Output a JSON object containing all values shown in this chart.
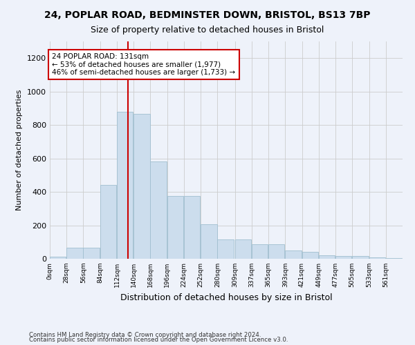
{
  "title": "24, POPLAR ROAD, BEDMINSTER DOWN, BRISTOL, BS13 7BP",
  "subtitle": "Size of property relative to detached houses in Bristol",
  "xlabel": "Distribution of detached houses by size in Bristol",
  "ylabel": "Number of detached properties",
  "bar_color": "#ccdded",
  "bar_edge_color": "#a0bfd0",
  "grid_color": "#cccccc",
  "bg_color": "#eef2fa",
  "property_size": 131,
  "bin_width": 28,
  "bin_starts": [
    0,
    28,
    56,
    84,
    112,
    140,
    168,
    196,
    224,
    252,
    280,
    309,
    337,
    365,
    393,
    421,
    449,
    477,
    505,
    533,
    561
  ],
  "bar_heights": [
    12,
    65,
    65,
    440,
    880,
    865,
    580,
    375,
    375,
    205,
    115,
    115,
    85,
    85,
    50,
    40,
    22,
    15,
    15,
    8,
    5
  ],
  "annotation_text": "24 POPLAR ROAD: 131sqm\n← 53% of detached houses are smaller (1,977)\n46% of semi-detached houses are larger (1,733) →",
  "annotation_box_color": "#ffffff",
  "annotation_box_edge": "#cc0000",
  "red_line_color": "#cc0000",
  "ylim": [
    0,
    1300
  ],
  "yticks": [
    0,
    200,
    400,
    600,
    800,
    1000,
    1200
  ],
  "footnote1": "Contains HM Land Registry data © Crown copyright and database right 2024.",
  "footnote2": "Contains public sector information licensed under the Open Government Licence v3.0."
}
